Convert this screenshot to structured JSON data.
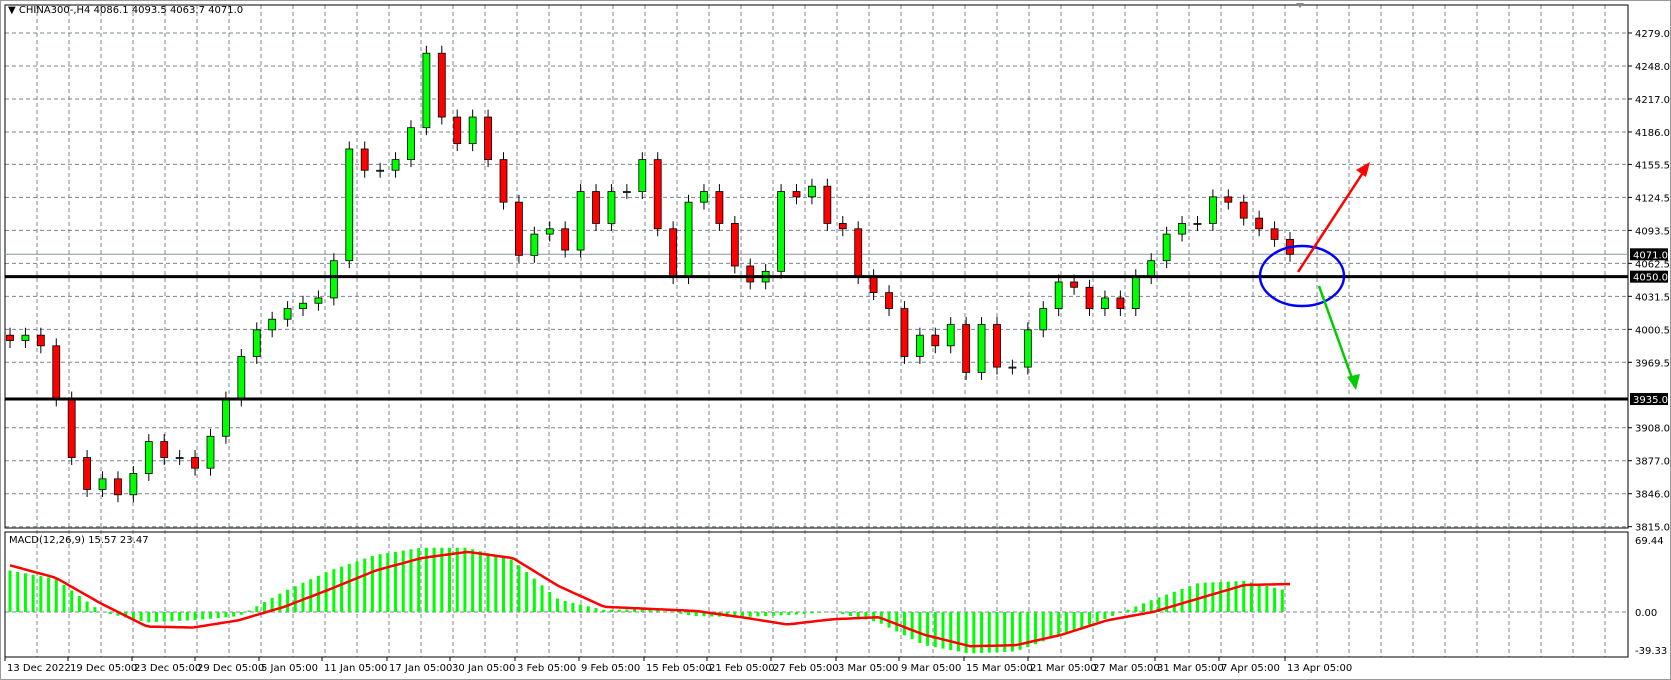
{
  "header": {
    "symbol": "CHINA300-,H4",
    "ohlc": "4086.1 4093.5 4063.7 4071.0"
  },
  "colors": {
    "bull": "#00ff00",
    "bear": "#ff0000",
    "grid": "#7a8490",
    "macd_hist": "#00ff00",
    "signal": "#ff0000",
    "ellipse": "#0000ff",
    "arrow_up": "#ff0000",
    "arrow_down": "#00cc00"
  },
  "chart_data": [
    {
      "type": "candlestick",
      "title": "CHINA300-,H4",
      "ylim": [
        3815.0,
        4279.0
      ],
      "y_ticks": [
        "4279.0",
        "4248.0",
        "4217.0",
        "4186.0",
        "4155.5",
        "4124.5",
        "4093.5",
        "4062.5",
        "4031.5",
        "4000.5",
        "3969.5",
        "3908.0",
        "3877.0",
        "3846.0",
        "3815.0"
      ],
      "x_ticks": [
        "13 Dec 2022",
        "19 Dec 05:00",
        "23 Dec 05:00",
        "29 Dec 05:00",
        "5 Jan 05:00",
        "11 Jan 05:00",
        "17 Jan 05:00",
        "30 Jan 05:00",
        "3 Feb 05:00",
        "9 Feb 05:00",
        "15 Feb 05:00",
        "21 Feb 05:00",
        "27 Feb 05:00",
        "3 Mar 05:00",
        "9 Mar 05:00",
        "15 Mar 05:00",
        "21 Mar 05:00",
        "27 Mar 05:00",
        "31 Mar 05:00",
        "7 Apr 05:00",
        "13 Apr 05:00"
      ],
      "closes": [
        3990,
        3995,
        3985,
        3935,
        3880,
        3850,
        3860,
        3845,
        3865,
        3895,
        3880,
        3880,
        3870,
        3900,
        3935,
        3975,
        4000,
        4010,
        4020,
        4025,
        4030,
        4065,
        4170,
        4150,
        4150,
        4160,
        4190,
        4260,
        4200,
        4175,
        4200,
        4160,
        4120,
        4070,
        4090,
        4095,
        4075,
        4130,
        4100,
        4130,
        4130,
        4160,
        4095,
        4050,
        4120,
        4130,
        4100,
        4060,
        4045,
        4055,
        4130,
        4125,
        4135,
        4100,
        4095,
        4050,
        4035,
        4020,
        3975,
        3995,
        3985,
        4005,
        3960,
        4005,
        3965,
        3965,
        4000,
        4020,
        4045,
        4040,
        4020,
        4030,
        4020,
        4050,
        4065,
        4090,
        4100,
        4100,
        4125,
        4120,
        4105,
        4095,
        4085,
        4071
      ],
      "horizontal_lines": [
        {
          "value": 4050.0,
          "label": "4050.0"
        },
        {
          "value": 3935.0,
          "label": "3935.0"
        }
      ],
      "current_price": {
        "value": 4071.0,
        "label": "4071.0"
      }
    },
    {
      "type": "macd",
      "title": "MACD(12,26,9) 15.57 23.47",
      "ylim": [
        -39.33,
        69.44
      ],
      "y_ticks": [
        "69.44",
        "0.00",
        "-39.33"
      ],
      "histogram": [
        40,
        32,
        0,
        -10,
        -8,
        -4,
        20,
        40,
        55,
        62,
        62,
        50,
        12,
        2,
        3,
        -4,
        -5,
        -3,
        0,
        -10,
        -32,
        -40,
        -38,
        -22,
        -6,
        12,
        28,
        30,
        20
      ],
      "signal": [
        45,
        33,
        8,
        -14,
        -15,
        -8,
        5,
        22,
        40,
        52,
        58,
        52,
        25,
        5,
        3,
        1,
        -5,
        -12,
        -7,
        -5,
        -22,
        -33,
        -32,
        -22,
        -8,
        0,
        13,
        26,
        27
      ]
    }
  ]
}
